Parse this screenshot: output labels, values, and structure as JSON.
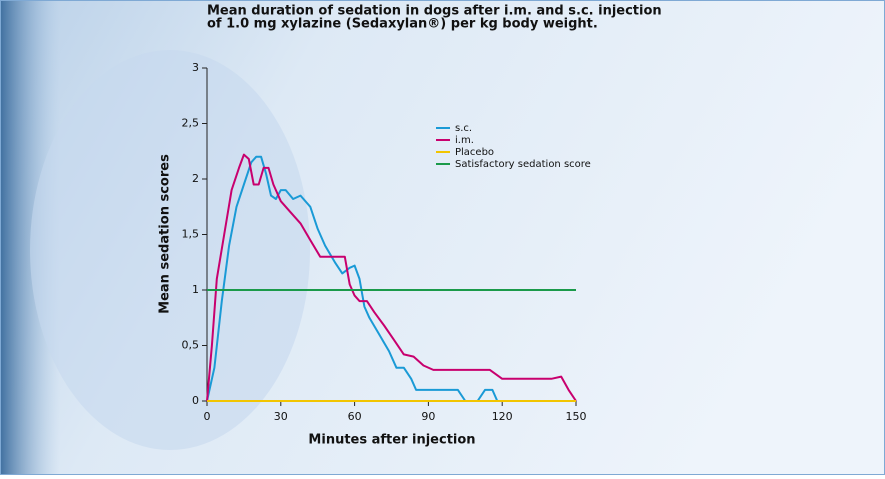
{
  "chart_data": {
    "type": "line",
    "title": [
      "Mean duration of sedation in dogs after i.m. and s.c. injection",
      "of 1.0 mg xylazine (Sedaxylan®) per kg body weight."
    ],
    "x_label": "Minutes after injection",
    "y_label": "Mean sedation scores",
    "xlim": [
      0,
      150
    ],
    "xticks": [
      0,
      30,
      60,
      90,
      120,
      150
    ],
    "ylim": [
      0,
      3
    ],
    "yticks": [
      0,
      {
        "value": 0.5,
        "label": "0,5"
      },
      1,
      {
        "value": 1.5,
        "label": "1,5"
      },
      2,
      {
        "value": 2.5,
        "label": "2,5"
      },
      3
    ],
    "grid": false,
    "series": [
      {
        "name": "s.c.",
        "color": "#1a9ad6",
        "x": [
          0,
          3,
          6,
          9,
          12,
          15,
          18,
          20,
          22,
          24,
          26,
          28,
          30,
          32,
          35,
          38,
          42,
          45,
          48,
          52,
          55,
          58,
          60,
          62,
          64,
          66,
          70,
          74,
          77,
          80,
          83,
          85,
          88,
          92,
          98,
          102,
          105,
          110,
          113,
          116,
          118
        ],
        "values": [
          0,
          0.3,
          0.9,
          1.4,
          1.75,
          1.95,
          2.15,
          2.2,
          2.2,
          2.05,
          1.85,
          1.82,
          1.9,
          1.9,
          1.82,
          1.85,
          1.75,
          1.55,
          1.4,
          1.25,
          1.15,
          1.2,
          1.22,
          1.1,
          0.85,
          0.75,
          0.6,
          0.45,
          0.3,
          0.3,
          0.2,
          0.1,
          0.1,
          0.1,
          0.1,
          0.1,
          0,
          0,
          0.1,
          0.1,
          0
        ]
      },
      {
        "name": "i.m.",
        "color": "#c8006e",
        "x": [
          0,
          2,
          4,
          7,
          10,
          13,
          15,
          17,
          19,
          21,
          23,
          25,
          27,
          30,
          34,
          38,
          42,
          46,
          52,
          56,
          58,
          60,
          62,
          65,
          68,
          72,
          76,
          80,
          84,
          88,
          92,
          100,
          110,
          115,
          120,
          130,
          140,
          144,
          147,
          150
        ],
        "values": [
          0,
          0.5,
          1.1,
          1.5,
          1.9,
          2.1,
          2.22,
          2.18,
          1.95,
          1.95,
          2.1,
          2.1,
          1.95,
          1.8,
          1.7,
          1.6,
          1.45,
          1.3,
          1.3,
          1.3,
          1.05,
          0.95,
          0.9,
          0.9,
          0.8,
          0.68,
          0.55,
          0.42,
          0.4,
          0.32,
          0.28,
          0.28,
          0.28,
          0.28,
          0.2,
          0.2,
          0.2,
          0.22,
          0.1,
          0
        ]
      },
      {
        "name": "Placebo",
        "color": "#f2c500",
        "x": [
          0,
          150
        ],
        "values": [
          0,
          0
        ]
      },
      {
        "name": "Satisfactory sedation score",
        "color": "#1a9a4a",
        "x": [
          0,
          150
        ],
        "values": [
          1,
          1
        ]
      }
    ]
  }
}
